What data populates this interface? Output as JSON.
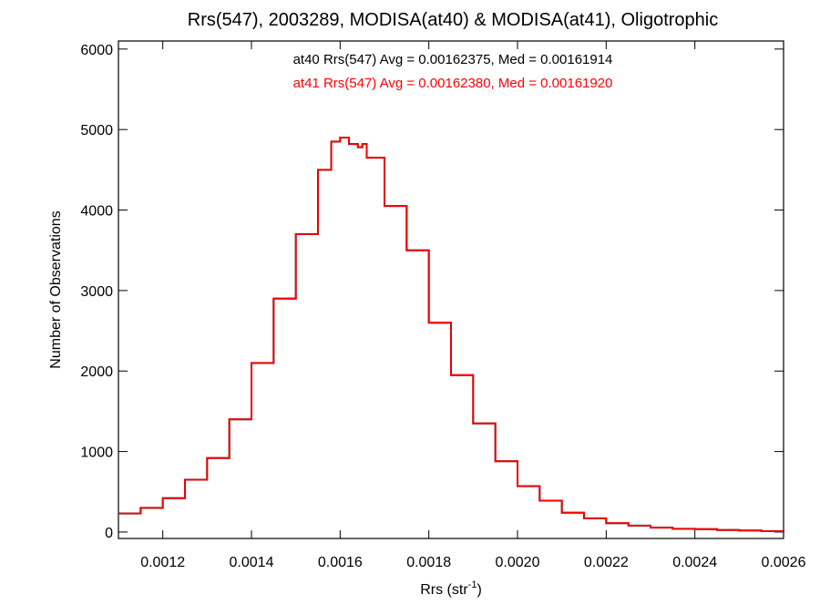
{
  "chart_data": {
    "type": "line",
    "style": "step-histogram",
    "title": "Rrs(547), 2003289, MODISA(at40) & MODISA(at41), Oligotrophic",
    "xlabel": "Rrs (str",
    "xlabel_sup": "-1",
    "xlabel_close": ")",
    "ylabel": "Number of Observations",
    "xlim": [
      0.0011,
      0.0026
    ],
    "ylim": [
      -80,
      6100
    ],
    "xticks": [
      "0.0012",
      "0.0014",
      "0.0016",
      "0.0018",
      "0.0020",
      "0.0022",
      "0.0024",
      "0.0026"
    ],
    "yticks": [
      "0",
      "1000",
      "2000",
      "3000",
      "4000",
      "5000",
      "6000"
    ],
    "grid": false,
    "annotations": [
      {
        "text": "at40 Rrs(547) Avg = 0.00162375, Med = 0.00161914",
        "color": "#000000"
      },
      {
        "text": "at41 Rrs(547) Avg = 0.00162380, Med = 0.00161920",
        "color": "#ff0000"
      }
    ],
    "series": [
      {
        "color": "#000000",
        "x": [
          0.0011,
          0.00115,
          0.0012,
          0.00125,
          0.0013,
          0.00135,
          0.0014,
          0.00145,
          0.0015,
          0.00155,
          0.00158,
          0.0016,
          0.00162,
          0.00164,
          0.00165,
          0.00166,
          0.0017,
          0.00175,
          0.0018,
          0.00185,
          0.0019,
          0.00195,
          0.002,
          0.00205,
          0.0021,
          0.00215,
          0.0022,
          0.00225,
          0.0023,
          0.00235,
          0.0024,
          0.00245,
          0.0025,
          0.00255,
          0.0026
        ],
        "values": [
          230,
          300,
          420,
          650,
          920,
          1400,
          2100,
          2900,
          3700,
          4500,
          4850,
          4900,
          4820,
          4780,
          4820,
          4650,
          4050,
          3500,
          2600,
          1950,
          1350,
          880,
          570,
          390,
          240,
          170,
          110,
          80,
          55,
          40,
          35,
          25,
          20,
          10,
          0
        ]
      },
      {
        "color": "#ff0000",
        "x": [
          0.0011,
          0.00115,
          0.0012,
          0.00125,
          0.0013,
          0.00135,
          0.0014,
          0.00145,
          0.0015,
          0.00155,
          0.00158,
          0.0016,
          0.00162,
          0.00164,
          0.00165,
          0.00166,
          0.0017,
          0.00175,
          0.0018,
          0.00185,
          0.0019,
          0.00195,
          0.002,
          0.00205,
          0.0021,
          0.00215,
          0.0022,
          0.00225,
          0.0023,
          0.00235,
          0.0024,
          0.00245,
          0.0025,
          0.00255,
          0.0026
        ],
        "values": [
          230,
          300,
          420,
          650,
          920,
          1400,
          2100,
          2900,
          3700,
          4500,
          4850,
          4900,
          4820,
          4780,
          4820,
          4650,
          4050,
          3500,
          2600,
          1950,
          1350,
          880,
          570,
          390,
          240,
          170,
          110,
          80,
          55,
          40,
          35,
          25,
          20,
          10,
          0
        ]
      }
    ]
  }
}
